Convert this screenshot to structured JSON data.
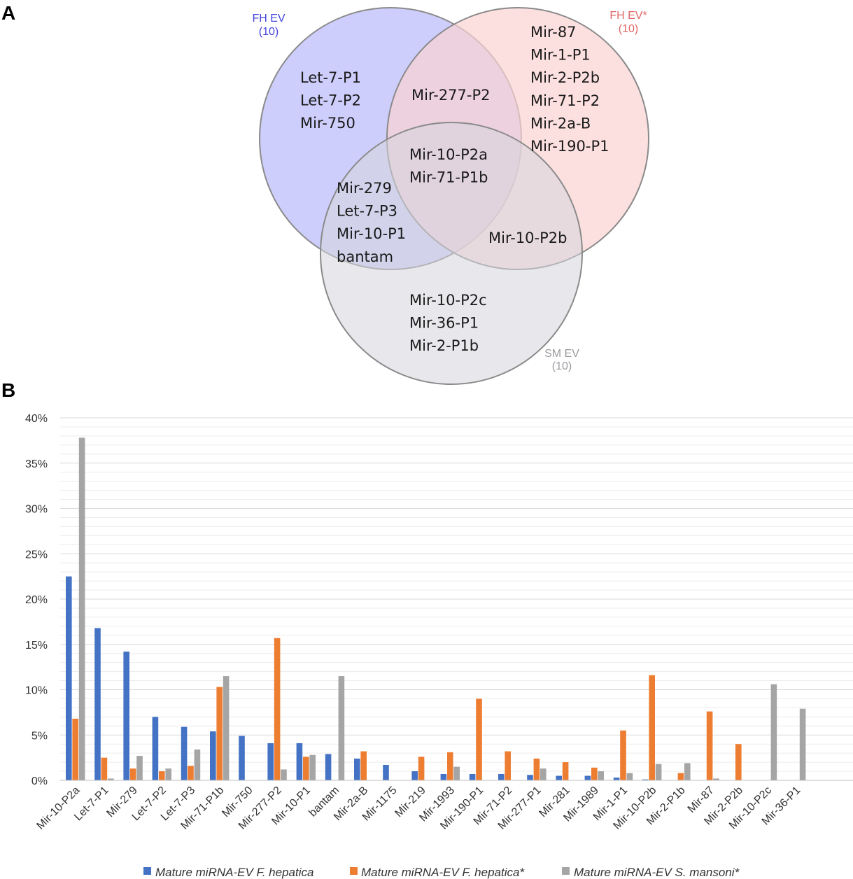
{
  "panels": {
    "a": "A",
    "b": "B"
  },
  "venn": {
    "sets": [
      {
        "label": "FH EV",
        "count": "(10)",
        "color": "#4444dd",
        "fill": "#c5c5fb"
      },
      {
        "label": "FH EV*",
        "count": "(10)",
        "color": "#e06666",
        "fill": "#fbd3d3"
      },
      {
        "label": "SM EV",
        "count": "(10)",
        "color": "#9a9aa0",
        "fill": "#d5d5dd"
      }
    ],
    "regions": {
      "fh_only": [
        "Let-7-P1",
        "Let-7-P2",
        "Mir-750"
      ],
      "fhstar_only": [
        "Mir-87",
        "Mir-1-P1",
        "Mir-2-P2b",
        "Mir-71-P2",
        "Mir-2a-B",
        "Mir-190-P1"
      ],
      "fh_fhstar": [
        "Mir-277-P2"
      ],
      "all_three": [
        "Mir-10-P2a",
        "Mir-71-P1b"
      ],
      "fh_sm": [
        "Mir-279",
        "Let-7-P3",
        "Mir-10-P1",
        "bantam"
      ],
      "fhstar_sm": [
        "Mir-10-P2b"
      ],
      "sm_only": [
        "Mir-10-P2c",
        "Mir-36-P1",
        "Mir-2-P1b"
      ]
    }
  },
  "chart_data": {
    "type": "bar",
    "title": "",
    "xlabel": "",
    "ylabel": "",
    "ylim": [
      0,
      40
    ],
    "yticks": [
      "0%",
      "5%",
      "10%",
      "15%",
      "20%",
      "25%",
      "30%",
      "35%",
      "40%"
    ],
    "categories": [
      "Mir-10-P2a",
      "Let-7-P1",
      "Mir-279",
      "Let-7-P2",
      "Let-7-P3",
      "Mir-71-P1b",
      "Mir-750",
      "Mir-277-P2",
      "Mir-10-P1",
      "bantam",
      "Mir-2a-B",
      "Mir-1175",
      "Mir-219",
      "Mir-1993",
      "Mir-190-P1",
      "Mir-71-P2",
      "Mir-277-P1",
      "Mir-281",
      "Mir-1989",
      "Mir-1-P1",
      "Mir-10-P2b",
      "Mir-2-P1b",
      "Mir-87",
      "Mir-2-P2b",
      "Mir-10-P2c",
      "Mir-36-P1"
    ],
    "series": [
      {
        "name": "Mature miRNA-EV F. hepatica",
        "color": "#4472c4",
        "values": [
          22.5,
          16.8,
          14.2,
          7.0,
          5.9,
          5.4,
          4.9,
          4.1,
          4.1,
          2.9,
          2.4,
          1.7,
          1.0,
          0.7,
          0.7,
          0.7,
          0.6,
          0.5,
          0.5,
          0.3,
          0.1,
          0,
          0,
          0,
          0,
          0
        ]
      },
      {
        "name": "Mature miRNA-EV F. hepatica*",
        "color": "#ed7d31",
        "values": [
          6.8,
          2.5,
          1.3,
          1.0,
          1.6,
          10.3,
          0,
          15.7,
          2.6,
          0,
          3.2,
          0,
          2.6,
          3.1,
          9.0,
          3.2,
          2.4,
          2.0,
          1.4,
          5.5,
          11.6,
          0.8,
          7.6,
          4.0,
          0,
          0
        ]
      },
      {
        "name": "Mature miRNA-EV S. mansoni*",
        "color": "#a5a5a5",
        "values": [
          37.8,
          0.2,
          2.7,
          1.3,
          3.4,
          11.5,
          0,
          1.2,
          2.8,
          11.5,
          0,
          0,
          0,
          1.5,
          0,
          0,
          1.3,
          0,
          1.0,
          0.8,
          1.8,
          1.9,
          0.2,
          0,
          10.6,
          7.9
        ]
      }
    ],
    "legend": "bottom",
    "grid": true
  }
}
